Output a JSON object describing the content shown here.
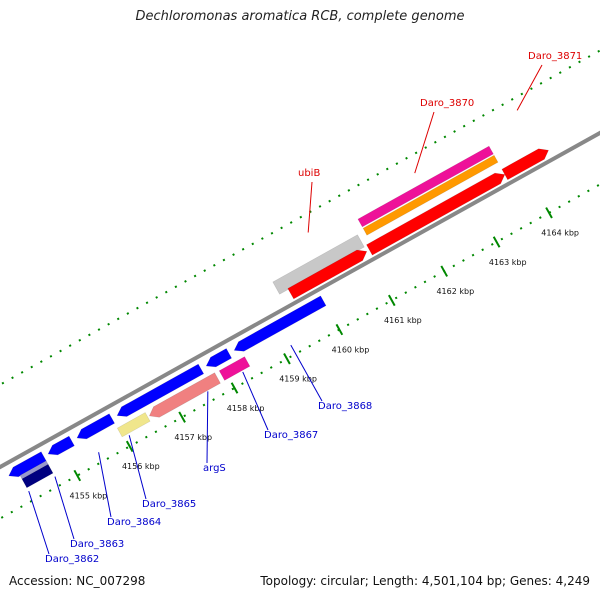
{
  "header": {
    "title": "Dechloromonas aromatica RCB, complete genome"
  },
  "footer": {
    "accession": "Accession: NC_007298",
    "summary": "Topology: circular; Length: 4,501,104 bp; Genes: 4,249"
  },
  "colors": {
    "background": "#ffffff",
    "backbone": "#888888",
    "tick": "#008800",
    "forward_label": "#dd0000",
    "reverse_label": "#0000cc",
    "cds_red": "#ff0000",
    "cds_blue": "#0000ff",
    "cds_grey": "#c8c8c8",
    "cds_orange": "#ff9900",
    "cds_magenta": "#ee1199",
    "cds_salmon": "#f08080",
    "cds_yellow": "#f0e68c",
    "cds_navy": "#000080"
  },
  "scale_labels": [
    "4155 kbp",
    "4156 kbp",
    "4157 kbp",
    "4158 kbp",
    "4159 kbp",
    "4160 kbp",
    "4161 kbp",
    "4162 kbp",
    "4163 kbp",
    "4164 kbp"
  ],
  "forward_genes": [
    {
      "name": "ubiB",
      "color": "#dd0000"
    },
    {
      "name": "Daro_3870",
      "color": "#dd0000"
    },
    {
      "name": "Daro_3871",
      "color": "#dd0000"
    }
  ],
  "reverse_genes": [
    {
      "name": "Daro_3862",
      "color": "#0000cc"
    },
    {
      "name": "Daro_3863",
      "color": "#0000cc"
    },
    {
      "name": "Daro_3864",
      "color": "#0000cc"
    },
    {
      "name": "Daro_3865",
      "color": "#0000cc"
    },
    {
      "name": "argS",
      "color": "#0000cc"
    },
    {
      "name": "Daro_3867",
      "color": "#0000cc"
    },
    {
      "name": "Daro_3868",
      "color": "#0000cc"
    }
  ]
}
